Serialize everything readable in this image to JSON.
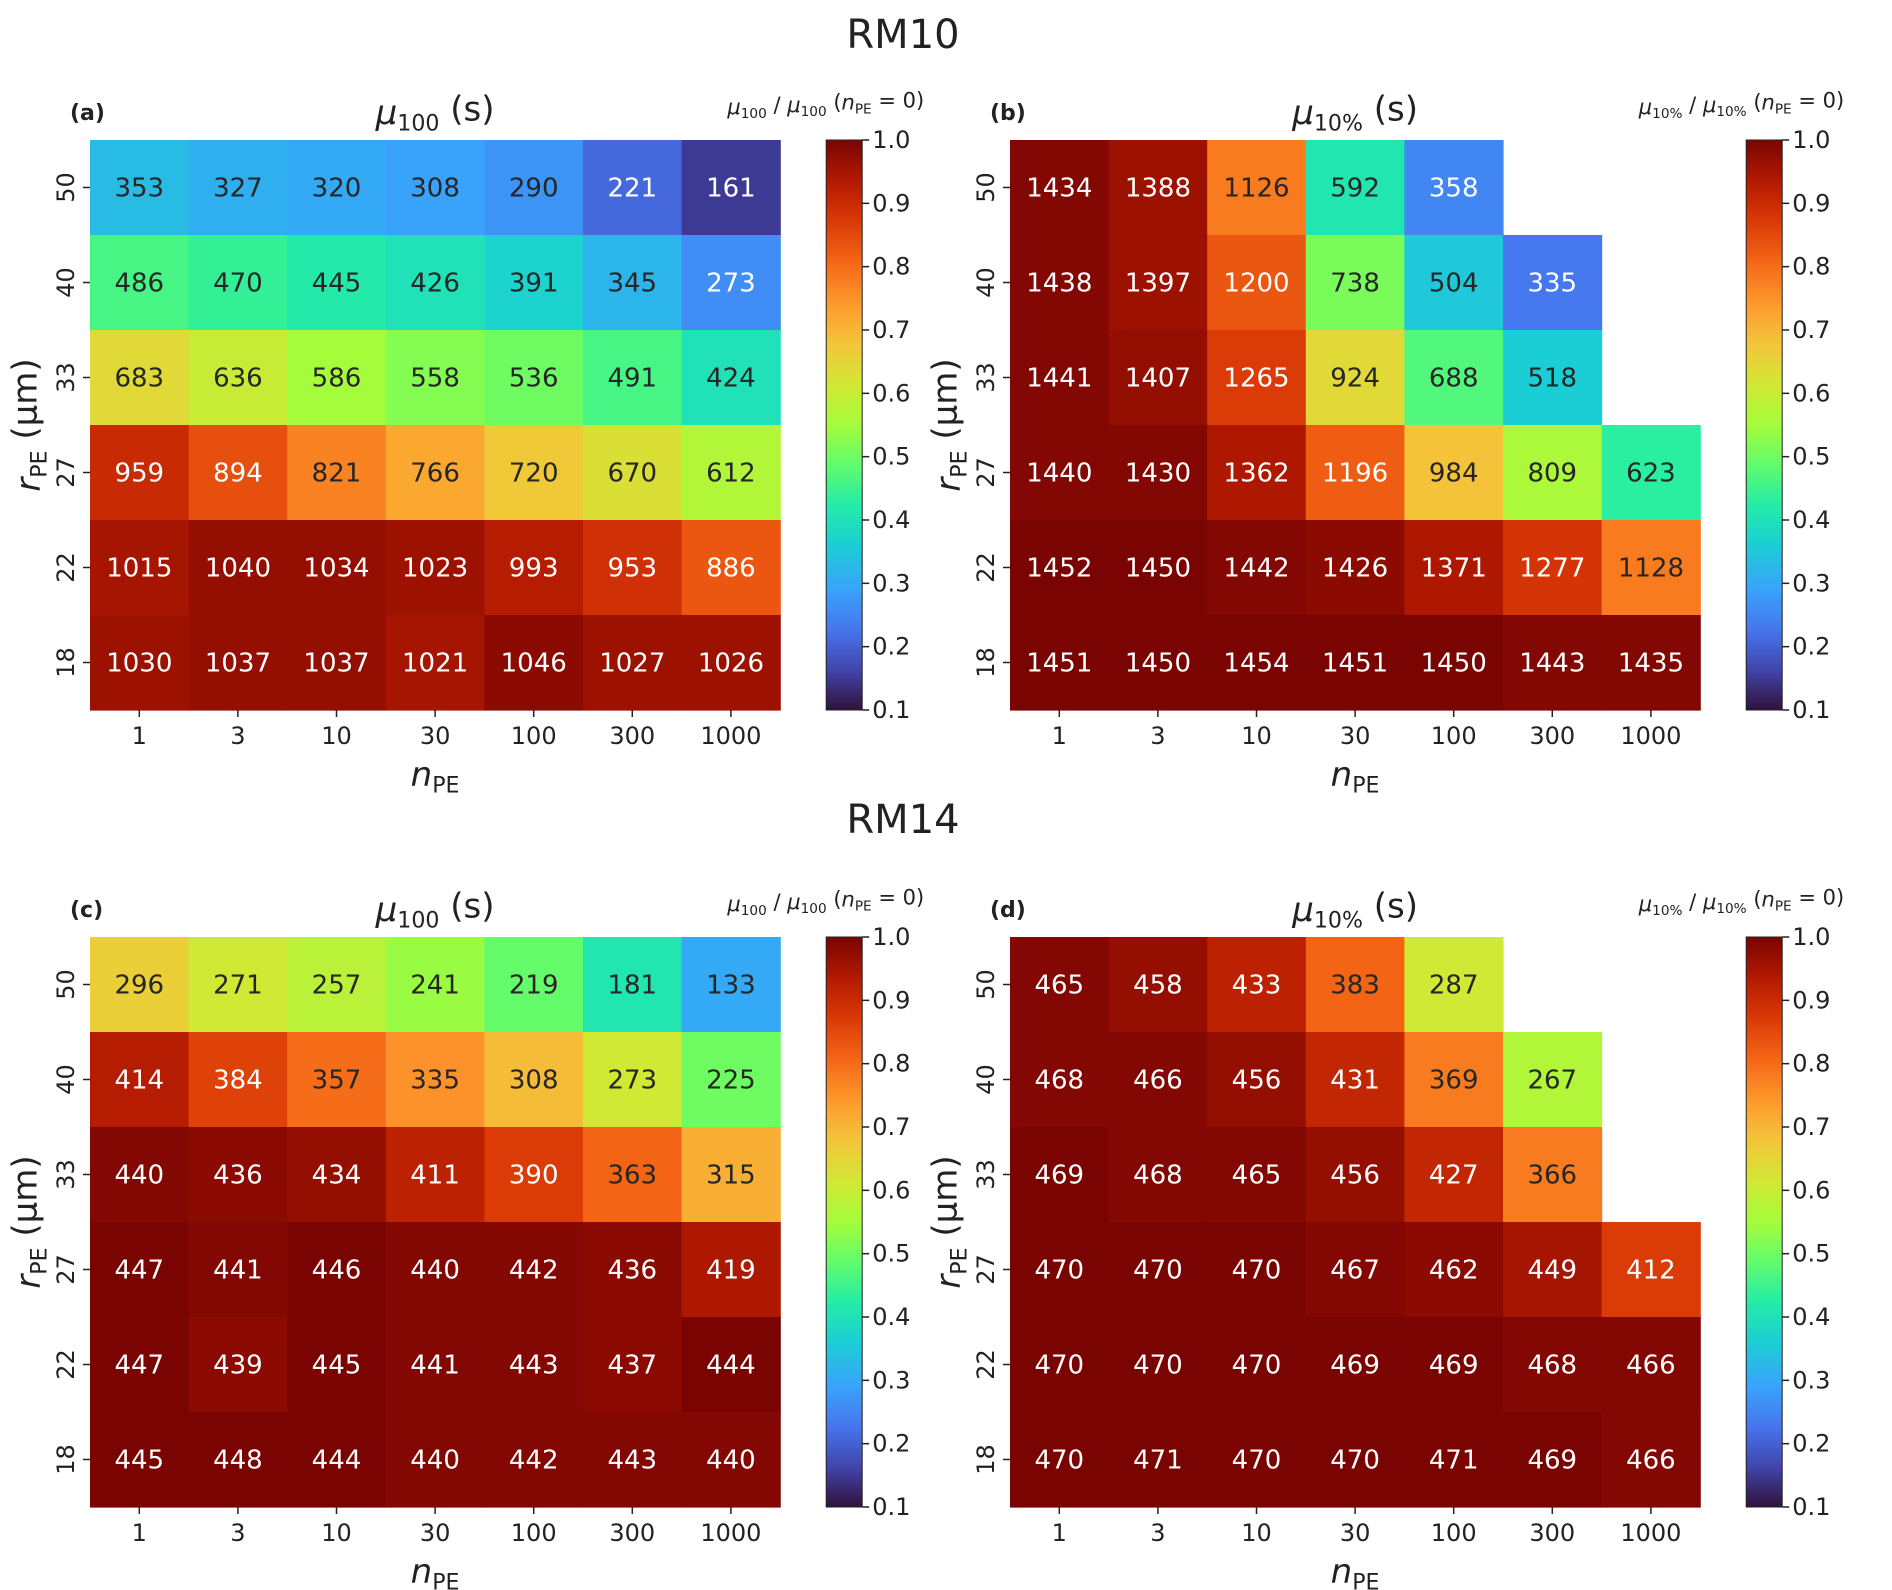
{
  "sections": [
    {
      "title": "RM10"
    },
    {
      "title": "RM14"
    }
  ],
  "colorbar_ticks": [
    "1.0",
    "0.9",
    "0.8",
    "0.7",
    "0.6",
    "0.5",
    "0.4",
    "0.3",
    "0.2",
    "0.1"
  ],
  "chart_data": [
    {
      "type": "heatmap",
      "panel": "(a)",
      "title": "μ100 (s)",
      "colorbar_label": "μ100 / μ100 (nPE = 0)",
      "colorbar_range": [
        0.1,
        1.0
      ],
      "xlabel": "nPE",
      "ylabel": "rPE (μm)",
      "x": [
        "1",
        "3",
        "10",
        "30",
        "100",
        "300",
        "1000"
      ],
      "y": [
        "50",
        "40",
        "33",
        "27",
        "22",
        "18"
      ],
      "values": [
        [
          353,
          327,
          320,
          308,
          290,
          221,
          161
        ],
        [
          486,
          470,
          445,
          426,
          391,
          345,
          273
        ],
        [
          683,
          636,
          586,
          558,
          536,
          491,
          424
        ],
        [
          959,
          894,
          821,
          766,
          720,
          670,
          612
        ],
        [
          1015,
          1040,
          1034,
          1023,
          993,
          953,
          886
        ],
        [
          1030,
          1037,
          1037,
          1021,
          1046,
          1027,
          1026
        ]
      ],
      "color_values": [
        [
          0.33,
          0.31,
          0.3,
          0.29,
          0.27,
          0.21,
          0.15
        ],
        [
          0.46,
          0.44,
          0.42,
          0.4,
          0.37,
          0.32,
          0.26
        ],
        [
          0.64,
          0.6,
          0.55,
          0.52,
          0.5,
          0.46,
          0.4
        ],
        [
          0.9,
          0.84,
          0.77,
          0.72,
          0.67,
          0.63,
          0.57
        ],
        [
          0.95,
          0.97,
          0.97,
          0.96,
          0.93,
          0.89,
          0.83
        ],
        [
          0.96,
          0.97,
          0.97,
          0.95,
          0.98,
          0.96,
          0.96
        ]
      ]
    },
    {
      "type": "heatmap",
      "panel": "(b)",
      "title": "μ10% (s)",
      "colorbar_label": "μ10% / μ10% (nPE = 0)",
      "colorbar_range": [
        0.1,
        1.0
      ],
      "xlabel": "nPE",
      "ylabel": "rPE (μm)",
      "x": [
        "1",
        "3",
        "10",
        "30",
        "100",
        "300",
        "1000"
      ],
      "y": [
        "50",
        "40",
        "33",
        "27",
        "22",
        "18"
      ],
      "values": [
        [
          1434,
          1388,
          1126,
          592,
          358,
          null,
          null
        ],
        [
          1438,
          1397,
          1200,
          738,
          504,
          335,
          null
        ],
        [
          1441,
          1407,
          1265,
          924,
          688,
          518,
          null
        ],
        [
          1440,
          1430,
          1362,
          1196,
          984,
          809,
          623
        ],
        [
          1452,
          1450,
          1442,
          1426,
          1371,
          1277,
          1128
        ],
        [
          1451,
          1450,
          1454,
          1451,
          1450,
          1443,
          1435
        ]
      ],
      "color_values": [
        [
          0.99,
          0.96,
          0.78,
          0.41,
          0.25,
          null,
          null
        ],
        [
          0.99,
          0.96,
          0.83,
          0.51,
          0.35,
          0.23,
          null
        ],
        [
          0.99,
          0.97,
          0.87,
          0.64,
          0.47,
          0.36,
          null
        ],
        [
          0.99,
          0.99,
          0.94,
          0.82,
          0.68,
          0.56,
          0.43
        ],
        [
          1.0,
          1.0,
          0.99,
          0.98,
          0.94,
          0.88,
          0.78
        ],
        [
          1.0,
          1.0,
          1.0,
          1.0,
          1.0,
          0.99,
          0.99
        ]
      ]
    },
    {
      "type": "heatmap",
      "panel": "(c)",
      "title": "μ100 (s)",
      "colorbar_label": "μ100 / μ100 (nPE = 0)",
      "colorbar_range": [
        0.1,
        1.0
      ],
      "xlabel": "nPE",
      "ylabel": "rPE (μm)",
      "x": [
        "1",
        "3",
        "10",
        "30",
        "100",
        "300",
        "1000"
      ],
      "y": [
        "50",
        "40",
        "33",
        "27",
        "22",
        "18"
      ],
      "values": [
        [
          296,
          271,
          257,
          241,
          219,
          181,
          133
        ],
        [
          414,
          384,
          357,
          335,
          308,
          273,
          225
        ],
        [
          440,
          436,
          434,
          411,
          390,
          363,
          315
        ],
        [
          447,
          441,
          446,
          440,
          442,
          436,
          419
        ],
        [
          447,
          439,
          445,
          441,
          443,
          437,
          444
        ],
        [
          445,
          448,
          444,
          440,
          442,
          443,
          440
        ]
      ],
      "color_values": [
        [
          0.66,
          0.61,
          0.58,
          0.54,
          0.49,
          0.41,
          0.3
        ],
        [
          0.93,
          0.86,
          0.8,
          0.75,
          0.69,
          0.61,
          0.5
        ],
        [
          0.99,
          0.98,
          0.97,
          0.92,
          0.87,
          0.81,
          0.71
        ],
        [
          1.0,
          0.99,
          1.0,
          0.99,
          0.99,
          0.98,
          0.94
        ],
        [
          1.0,
          0.98,
          1.0,
          0.99,
          0.99,
          0.98,
          1.0
        ],
        [
          1.0,
          1.0,
          1.0,
          0.99,
          0.99,
          0.99,
          0.99
        ]
      ]
    },
    {
      "type": "heatmap",
      "panel": "(d)",
      "title": "μ10% (s)",
      "colorbar_label": "μ10% / μ10% (nPE = 0)",
      "colorbar_range": [
        0.1,
        1.0
      ],
      "xlabel": "nPE",
      "ylabel": "rPE (μm)",
      "x": [
        "1",
        "3",
        "10",
        "30",
        "100",
        "300",
        "1000"
      ],
      "y": [
        "50",
        "40",
        "33",
        "27",
        "22",
        "18"
      ],
      "values": [
        [
          465,
          458,
          433,
          383,
          287,
          null,
          null
        ],
        [
          468,
          466,
          456,
          431,
          369,
          267,
          null
        ],
        [
          469,
          468,
          465,
          456,
          427,
          366,
          null
        ],
        [
          470,
          470,
          470,
          467,
          462,
          449,
          412
        ],
        [
          470,
          470,
          470,
          469,
          469,
          468,
          466
        ],
        [
          470,
          471,
          470,
          470,
          471,
          469,
          466
        ]
      ],
      "color_values": [
        [
          0.99,
          0.97,
          0.92,
          0.81,
          0.61,
          null,
          null
        ],
        [
          0.99,
          0.99,
          0.97,
          0.91,
          0.78,
          0.57,
          null
        ],
        [
          1.0,
          0.99,
          0.99,
          0.97,
          0.91,
          0.78,
          null
        ],
        [
          1.0,
          1.0,
          1.0,
          0.99,
          0.98,
          0.95,
          0.87
        ],
        [
          1.0,
          1.0,
          1.0,
          1.0,
          1.0,
          0.99,
          0.99
        ],
        [
          1.0,
          1.0,
          1.0,
          1.0,
          1.0,
          1.0,
          0.99
        ]
      ]
    }
  ]
}
